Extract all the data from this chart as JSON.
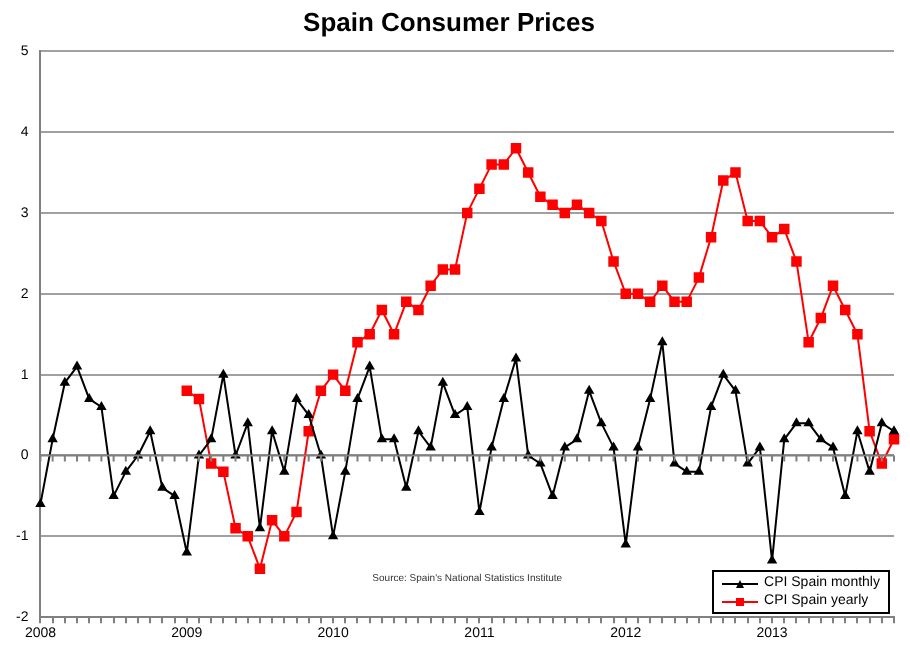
{
  "chart_data": {
    "type": "line",
    "title": "Spain Consumer Prices",
    "categories": [
      "2008",
      null,
      null,
      null,
      null,
      null,
      null,
      null,
      null,
      null,
      null,
      null,
      "2009",
      null,
      null,
      null,
      null,
      null,
      null,
      null,
      null,
      null,
      null,
      null,
      "2010",
      null,
      null,
      null,
      null,
      null,
      null,
      null,
      null,
      null,
      null,
      null,
      "2011",
      null,
      null,
      null,
      null,
      null,
      null,
      null,
      null,
      null,
      null,
      null,
      "2012",
      null,
      null,
      null,
      null,
      null,
      null,
      null,
      null,
      null,
      null,
      null,
      "2013",
      null,
      null,
      null,
      null,
      null,
      null,
      null,
      null,
      null,
      null
    ],
    "series": [
      {
        "name": "CPI Spain monthly",
        "color": "#000000",
        "marker": "triangle",
        "values": [
          -0.6,
          0.2,
          0.9,
          1.1,
          0.7,
          0.6,
          -0.5,
          -0.2,
          0.0,
          0.3,
          -0.4,
          -0.5,
          -1.2,
          0.0,
          0.2,
          1.0,
          0.0,
          0.4,
          -0.9,
          0.3,
          -0.2,
          0.7,
          0.5,
          0.0,
          -1.0,
          -0.2,
          0.7,
          1.1,
          0.2,
          0.2,
          -0.4,
          0.3,
          0.1,
          0.9,
          0.5,
          0.6,
          -0.7,
          0.1,
          0.7,
          1.2,
          0.0,
          -0.1,
          -0.5,
          0.1,
          0.2,
          0.8,
          0.4,
          0.1,
          -1.1,
          0.1,
          0.7,
          1.4,
          -0.1,
          -0.2,
          -0.2,
          0.6,
          1.0,
          0.8,
          -0.1,
          0.1,
          -1.3,
          0.2,
          0.4,
          0.4,
          0.2,
          0.1,
          -0.5,
          0.3,
          -0.2,
          0.4,
          0.3
        ]
      },
      {
        "name": "CPI Spain yearly",
        "color": "#ff0000",
        "marker": "square",
        "values": [
          null,
          null,
          null,
          null,
          null,
          null,
          null,
          null,
          null,
          null,
          null,
          null,
          0.8,
          0.7,
          -0.1,
          -0.2,
          -0.9,
          -1.0,
          -1.4,
          -0.8,
          -1.0,
          -0.7,
          0.3,
          0.8,
          1.0,
          0.8,
          1.4,
          1.5,
          1.8,
          1.5,
          1.9,
          1.8,
          2.1,
          2.3,
          2.3,
          3.0,
          3.3,
          3.6,
          3.6,
          3.8,
          3.5,
          3.2,
          3.1,
          3.0,
          3.1,
          3.0,
          2.9,
          2.4,
          2.0,
          2.0,
          1.9,
          2.1,
          1.9,
          1.9,
          2.2,
          2.7,
          3.4,
          3.5,
          2.9,
          2.9,
          2.7,
          2.8,
          2.4,
          1.4,
          1.7,
          2.1,
          1.8,
          1.5,
          0.3,
          -0.1,
          0.2
        ]
      }
    ],
    "ylim": [
      -2,
      5
    ],
    "yticks": [
      -2,
      -1,
      0,
      1,
      2,
      3,
      4,
      5
    ],
    "grid": "y",
    "legend": "bottom right",
    "annotations": [
      "Source: Spain's National Statistics Institute"
    ]
  }
}
